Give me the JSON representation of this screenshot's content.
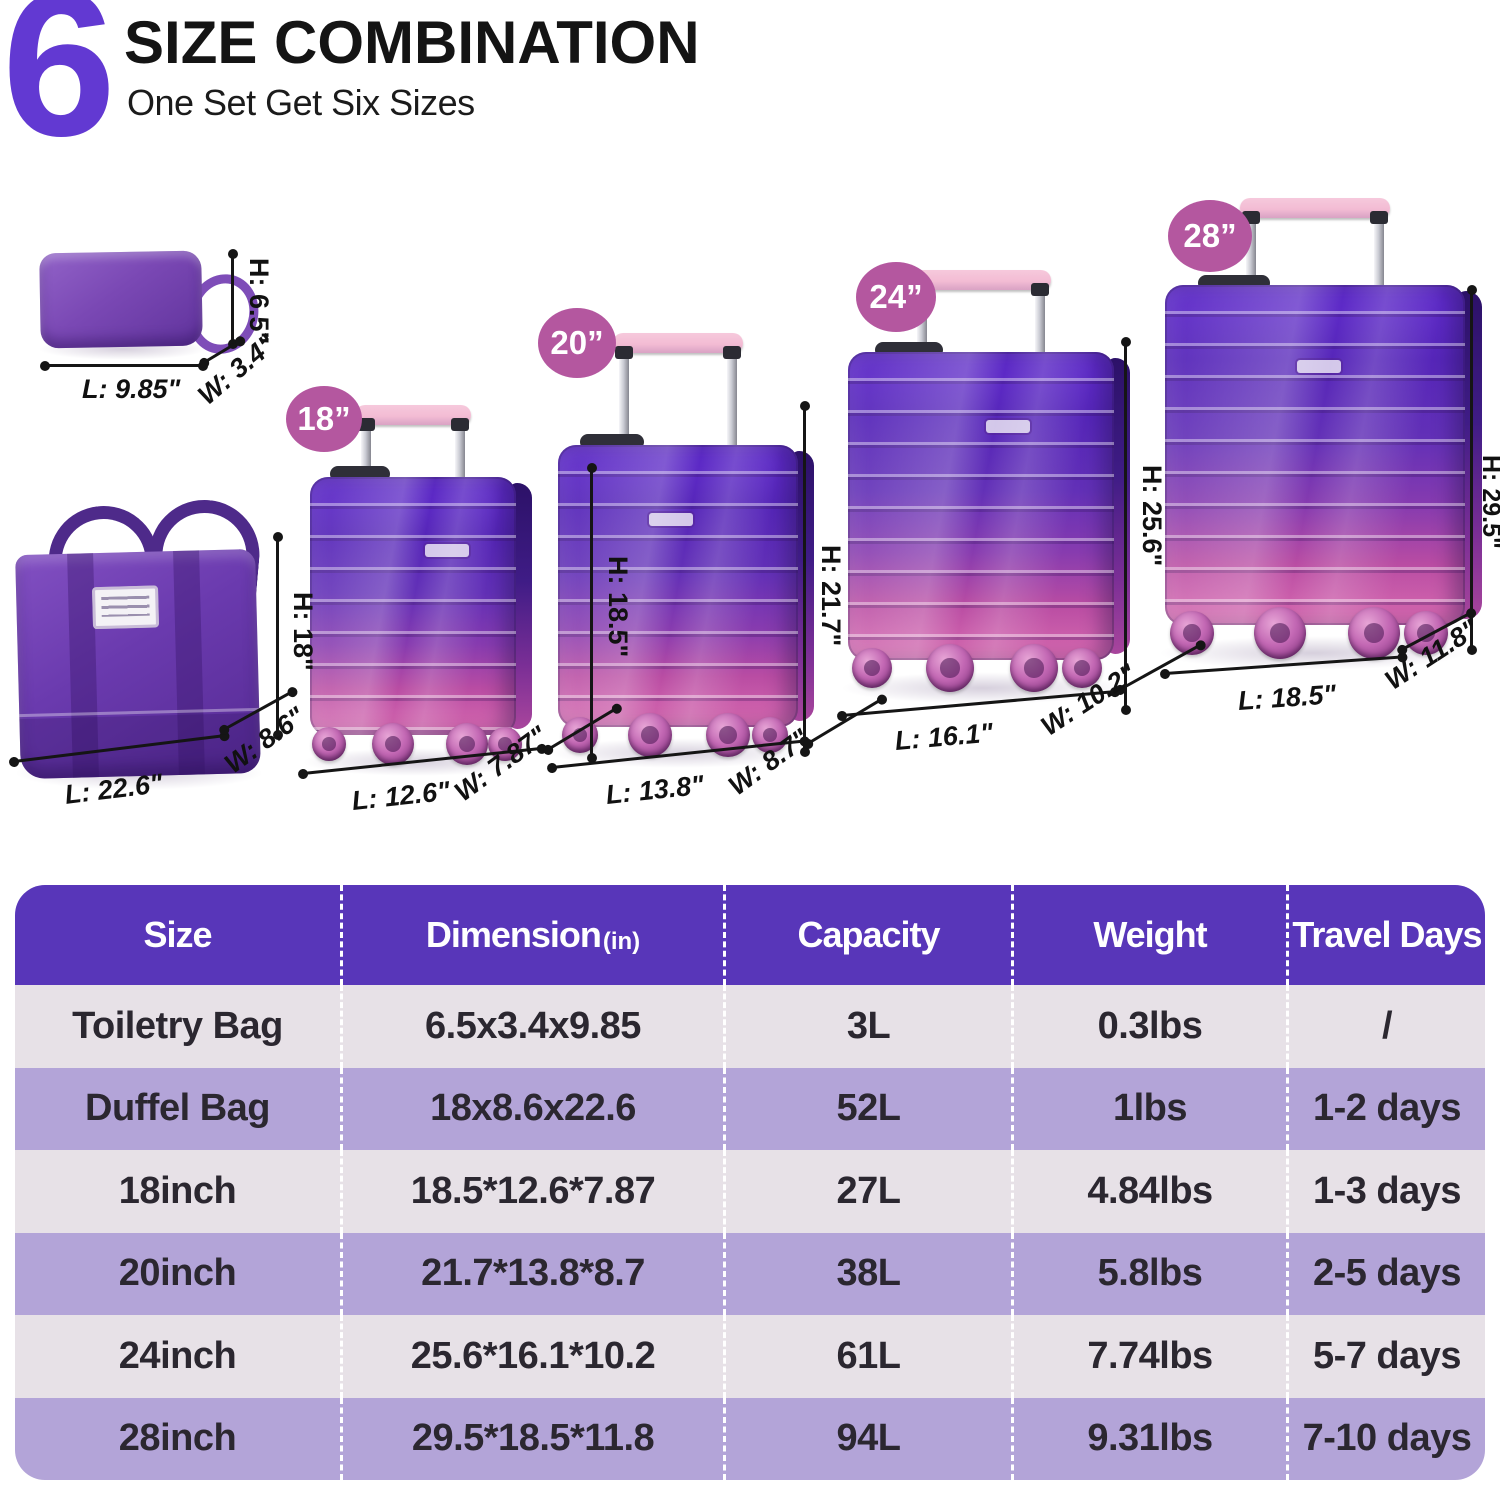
{
  "header": {
    "badge_number": "6",
    "title": "SIZE COMBINATION",
    "subtitle": "One Set Get Six Sizes"
  },
  "products": {
    "toiletry_bag": {
      "h_label": "H: 6.5\"",
      "l_label": "L: 9.85\"",
      "w_label": "W: 3.4\""
    },
    "duffel_bag": {
      "h_label": "H: 18\"",
      "l_label": "L: 22.6\"",
      "w_label": "W: 8.6\""
    },
    "suitcases": [
      {
        "badge": "18”",
        "h_label": "H: 18.5\"",
        "l_label": "L: 12.6\"",
        "w_label": "W: 7.87\""
      },
      {
        "badge": "20”",
        "h_label": "H: 21.7\"",
        "l_label": "L: 13.8\"",
        "w_label": "W: 8.7\""
      },
      {
        "badge": "24”",
        "h_label": "H: 25.6\"",
        "l_label": "L: 16.1\"",
        "w_label": "W: 10.2\""
      },
      {
        "badge": "28”",
        "h_label": "H: 29.5\"",
        "l_label": "L: 18.5\"",
        "w_label": "W: 11.8\""
      }
    ]
  },
  "table": {
    "headers": [
      "Size",
      "Dimension",
      "Capacity",
      "Weight",
      "Travel Days"
    ],
    "dimension_unit": "(in)",
    "rows": [
      [
        "Toiletry Bag",
        "6.5x3.4x9.85",
        "3L",
        "0.3lbs",
        "/"
      ],
      [
        "Duffel Bag",
        "18x8.6x22.6",
        "52L",
        "1lbs",
        "1-2 days"
      ],
      [
        "18inch",
        "18.5*12.6*7.87",
        "27L",
        "4.84lbs",
        "1-3 days"
      ],
      [
        "20inch",
        "21.7*13.8*8.7",
        "38L",
        "5.8lbs",
        "2-5 days"
      ],
      [
        "24inch",
        "25.6*16.1*10.2",
        "61L",
        "7.74lbs",
        "5-7 days"
      ],
      [
        "28inch",
        "29.5*18.5*11.8",
        "94L",
        "9.31lbs",
        "7-10 days"
      ]
    ]
  },
  "colors": {
    "accent_purple": "#6239d2",
    "header_purple": "#5836b9",
    "row_light": "#e7e1e7",
    "row_lavender": "#b3a4d8",
    "badge_pink": "#b4579f",
    "case_violet": "#4f1db6",
    "case_magenta": "#d765ae"
  }
}
